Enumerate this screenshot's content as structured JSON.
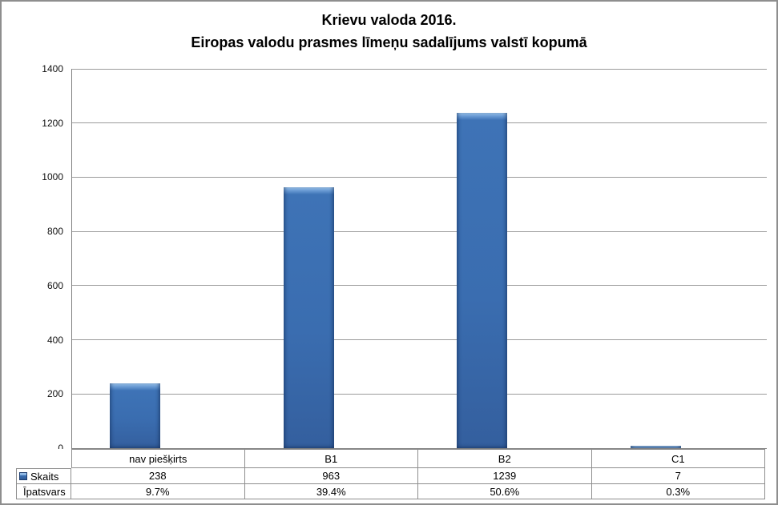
{
  "title": {
    "line1": "Krievu valoda 2016.",
    "line2": "Eiropas valodu prasmes līmeņu sadalījums valstī kopumā"
  },
  "chart_data": {
    "type": "bar",
    "title": "Krievu valoda 2016. Eiropas valodu prasmes līmeņu sadalījums valstī kopumā",
    "categories": [
      "nav piešķirts",
      "B1",
      "B2",
      "C1"
    ],
    "series": [
      {
        "name": "Skaits",
        "values": [
          238,
          963,
          1239,
          7
        ]
      }
    ],
    "percent_row": {
      "name": "Īpatsvars",
      "values": [
        "9.7%",
        "39.4%",
        "50.6%",
        "0.3%"
      ]
    },
    "ylim": [
      0,
      1400
    ],
    "yticks": [
      0,
      200,
      400,
      600,
      800,
      1000,
      1200,
      1400
    ],
    "grid": true,
    "legend_position": "data-table-below",
    "bar_color": "#3B70B4"
  },
  "colors": {
    "bar_fill": "#3B70B4",
    "bar_highlight": "#9CC4EC",
    "bar_edge": "#2E5A94",
    "gridline": "#9B9B9B",
    "axis_line": "#808080",
    "table_border": "#8E8E8E",
    "frame_border": "#8E8E8E",
    "background": "#FFFFFF"
  }
}
